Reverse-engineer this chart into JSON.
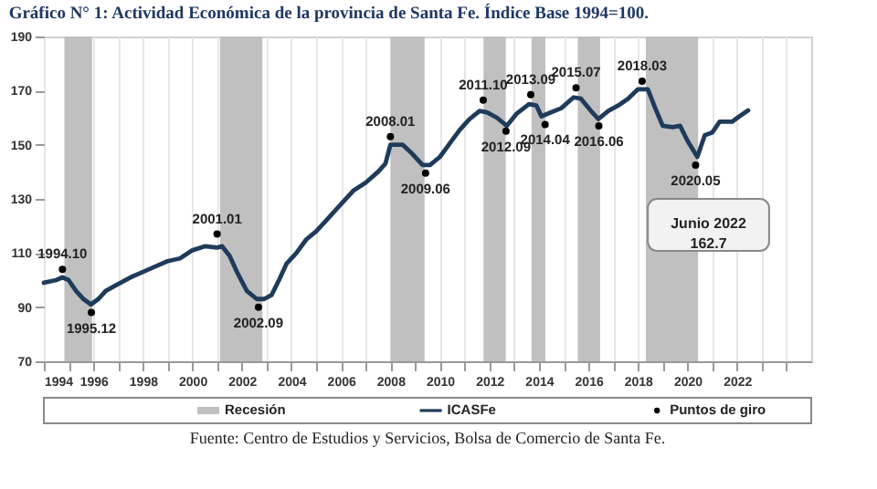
{
  "chart_data": {
    "type": "line",
    "title": "Gráfico N° 1: Actividad Económica de la provincia de Santa Fe. Índice Base 1994=100.",
    "xlim": [
      1994,
      2025
    ],
    "ylim": [
      70,
      190
    ],
    "xticks": [
      1994,
      {
        "value": 1995,
        "label": null
      },
      1996,
      {
        "value": 1997,
        "label": null
      },
      1998,
      {
        "value": 1999,
        "label": null
      },
      2000,
      {
        "value": 2001,
        "label": null
      },
      2002,
      {
        "value": 2003,
        "label": null
      },
      2004,
      {
        "value": 2005,
        "label": null
      },
      2006,
      {
        "value": 2007,
        "label": null
      },
      2008,
      {
        "value": 2009,
        "label": null
      },
      2010,
      {
        "value": 2011,
        "label": null
      },
      2012,
      {
        "value": 2013,
        "label": null
      },
      2014,
      {
        "value": 2015,
        "label": null
      },
      2016,
      {
        "value": 2017,
        "label": null
      },
      2018,
      {
        "value": 2019,
        "label": null
      },
      2020,
      {
        "value": 2021,
        "label": null
      },
      2022,
      {
        "value": 2023,
        "label": null
      },
      {
        "value": 2024,
        "label": null
      }
    ],
    "yticks": [
      70,
      90,
      110,
      130,
      150,
      170,
      190
    ],
    "grid": "x",
    "legend": "bottom",
    "bands": [
      {
        "axis": "x",
        "from": 1994.83,
        "to": 1995.95,
        "label": "Recesión",
        "color": "#c0c0c0"
      },
      {
        "axis": "x",
        "from": 2001.12,
        "to": 2002.83,
        "color": "#c0c0c0"
      },
      {
        "axis": "x",
        "from": 2008.0,
        "to": 2009.38,
        "color": "#c0c0c0"
      },
      {
        "axis": "x",
        "from": 2011.76,
        "to": 2012.66,
        "color": "#c0c0c0"
      },
      {
        "axis": "x",
        "from": 2013.7,
        "to": 2014.26,
        "color": "#c0c0c0"
      },
      {
        "axis": "x",
        "from": 2015.57,
        "to": 2016.47,
        "color": "#c0c0c0"
      },
      {
        "axis": "x",
        "from": 2018.32,
        "to": 2020.43,
        "color": "#c0c0c0"
      }
    ],
    "series": [
      {
        "name": "ICASFe",
        "type": "line",
        "color": "#1f3b5a",
        "x": [
          1994.0,
          1994.5,
          1994.75,
          1995.0,
          1995.3,
          1995.6,
          1995.9,
          1996.2,
          1996.5,
          1997.0,
          1997.5,
          1998.0,
          1998.5,
          1999.0,
          1999.5,
          2000.0,
          2000.5,
          2001.0,
          2001.2,
          2001.5,
          2001.8,
          2002.2,
          2002.6,
          2002.9,
          2003.2,
          2003.5,
          2003.8,
          2004.2,
          2004.6,
          2005.0,
          2005.5,
          2006.0,
          2006.5,
          2007.0,
          2007.5,
          2007.8,
          2008.0,
          2008.5,
          2008.9,
          2009.3,
          2009.6,
          2010.0,
          2010.4,
          2010.8,
          2011.2,
          2011.6,
          2011.9,
          2012.3,
          2012.7,
          2013.1,
          2013.6,
          2013.9,
          2014.1,
          2014.5,
          2014.9,
          2015.4,
          2015.7,
          2016.1,
          2016.4,
          2016.8,
          2017.2,
          2017.6,
          2018.0,
          2018.4,
          2018.7,
          2019.0,
          2019.4,
          2019.7,
          2020.0,
          2020.4,
          2020.7,
          2021.0,
          2021.3,
          2021.8,
          2022.1,
          2022.45
        ],
        "values": [
          99,
          100,
          101,
          100,
          96,
          93,
          91,
          93,
          96,
          98.5,
          101,
          103,
          105,
          107,
          108,
          111,
          112.5,
          112,
          112.5,
          109,
          103,
          96,
          93,
          93,
          94.5,
          100,
          106,
          110,
          115,
          118,
          123,
          128,
          133,
          136,
          140,
          143,
          150,
          150,
          146.5,
          142.5,
          142.5,
          145.5,
          150.5,
          155.5,
          159.5,
          162.5,
          162,
          160,
          157,
          161.5,
          165,
          164.5,
          160.5,
          162,
          163.5,
          167.5,
          167,
          162.5,
          159.5,
          162.5,
          164.5,
          167,
          170.5,
          170.5,
          163.5,
          157,
          156.5,
          157,
          151.5,
          145.5,
          153.5,
          154.5,
          158.5,
          158.5,
          160.5,
          162.7
        ]
      },
      {
        "name": "Puntos de giro",
        "type": "scatter",
        "color": "#000000",
        "marker": "circle",
        "x": [
          1994.75,
          1995.92,
          2001.0,
          2002.67,
          2008.0,
          2009.42,
          2011.75,
          2012.67,
          2013.67,
          2014.25,
          2015.5,
          2016.42,
          2018.17,
          2020.33
        ],
        "values": [
          104,
          88,
          117,
          90,
          153,
          139.5,
          166.5,
          155,
          168.5,
          157.5,
          171,
          157,
          173.5,
          142.5
        ]
      }
    ],
    "annotations": [
      {
        "text": "1994.10",
        "x": 1994.75,
        "y": 104
      },
      {
        "text": "1995.12",
        "x": 1995.92,
        "y": 88
      },
      {
        "text": "2001.01",
        "x": 2001.0,
        "y": 117
      },
      {
        "text": "2002.09",
        "x": 2002.67,
        "y": 90
      },
      {
        "text": "2008.01",
        "x": 2008.0,
        "y": 153
      },
      {
        "text": "2009.06",
        "x": 2009.42,
        "y": 139.5
      },
      {
        "text": "2011.10",
        "x": 2011.75,
        "y": 166.5
      },
      {
        "text": "2012.09",
        "x": 2012.67,
        "y": 155
      },
      {
        "text": "2013.09",
        "x": 2013.67,
        "y": 168.5
      },
      {
        "text": "2014.04",
        "x": 2014.25,
        "y": 157.5
      },
      {
        "text": "2015.07",
        "x": 2015.5,
        "y": 171
      },
      {
        "text": "2016.06",
        "x": 2016.42,
        "y": 157
      },
      {
        "text": "2018.03",
        "x": 2018.17,
        "y": 173.5
      },
      {
        "text": "2020.05",
        "x": 2020.33,
        "y": 142.5
      },
      "Junio 2022\n162.7",
      "Fuente: Centro de Estudios y Servicios, Bolsa de Comercio de Santa Fe."
    ]
  }
}
